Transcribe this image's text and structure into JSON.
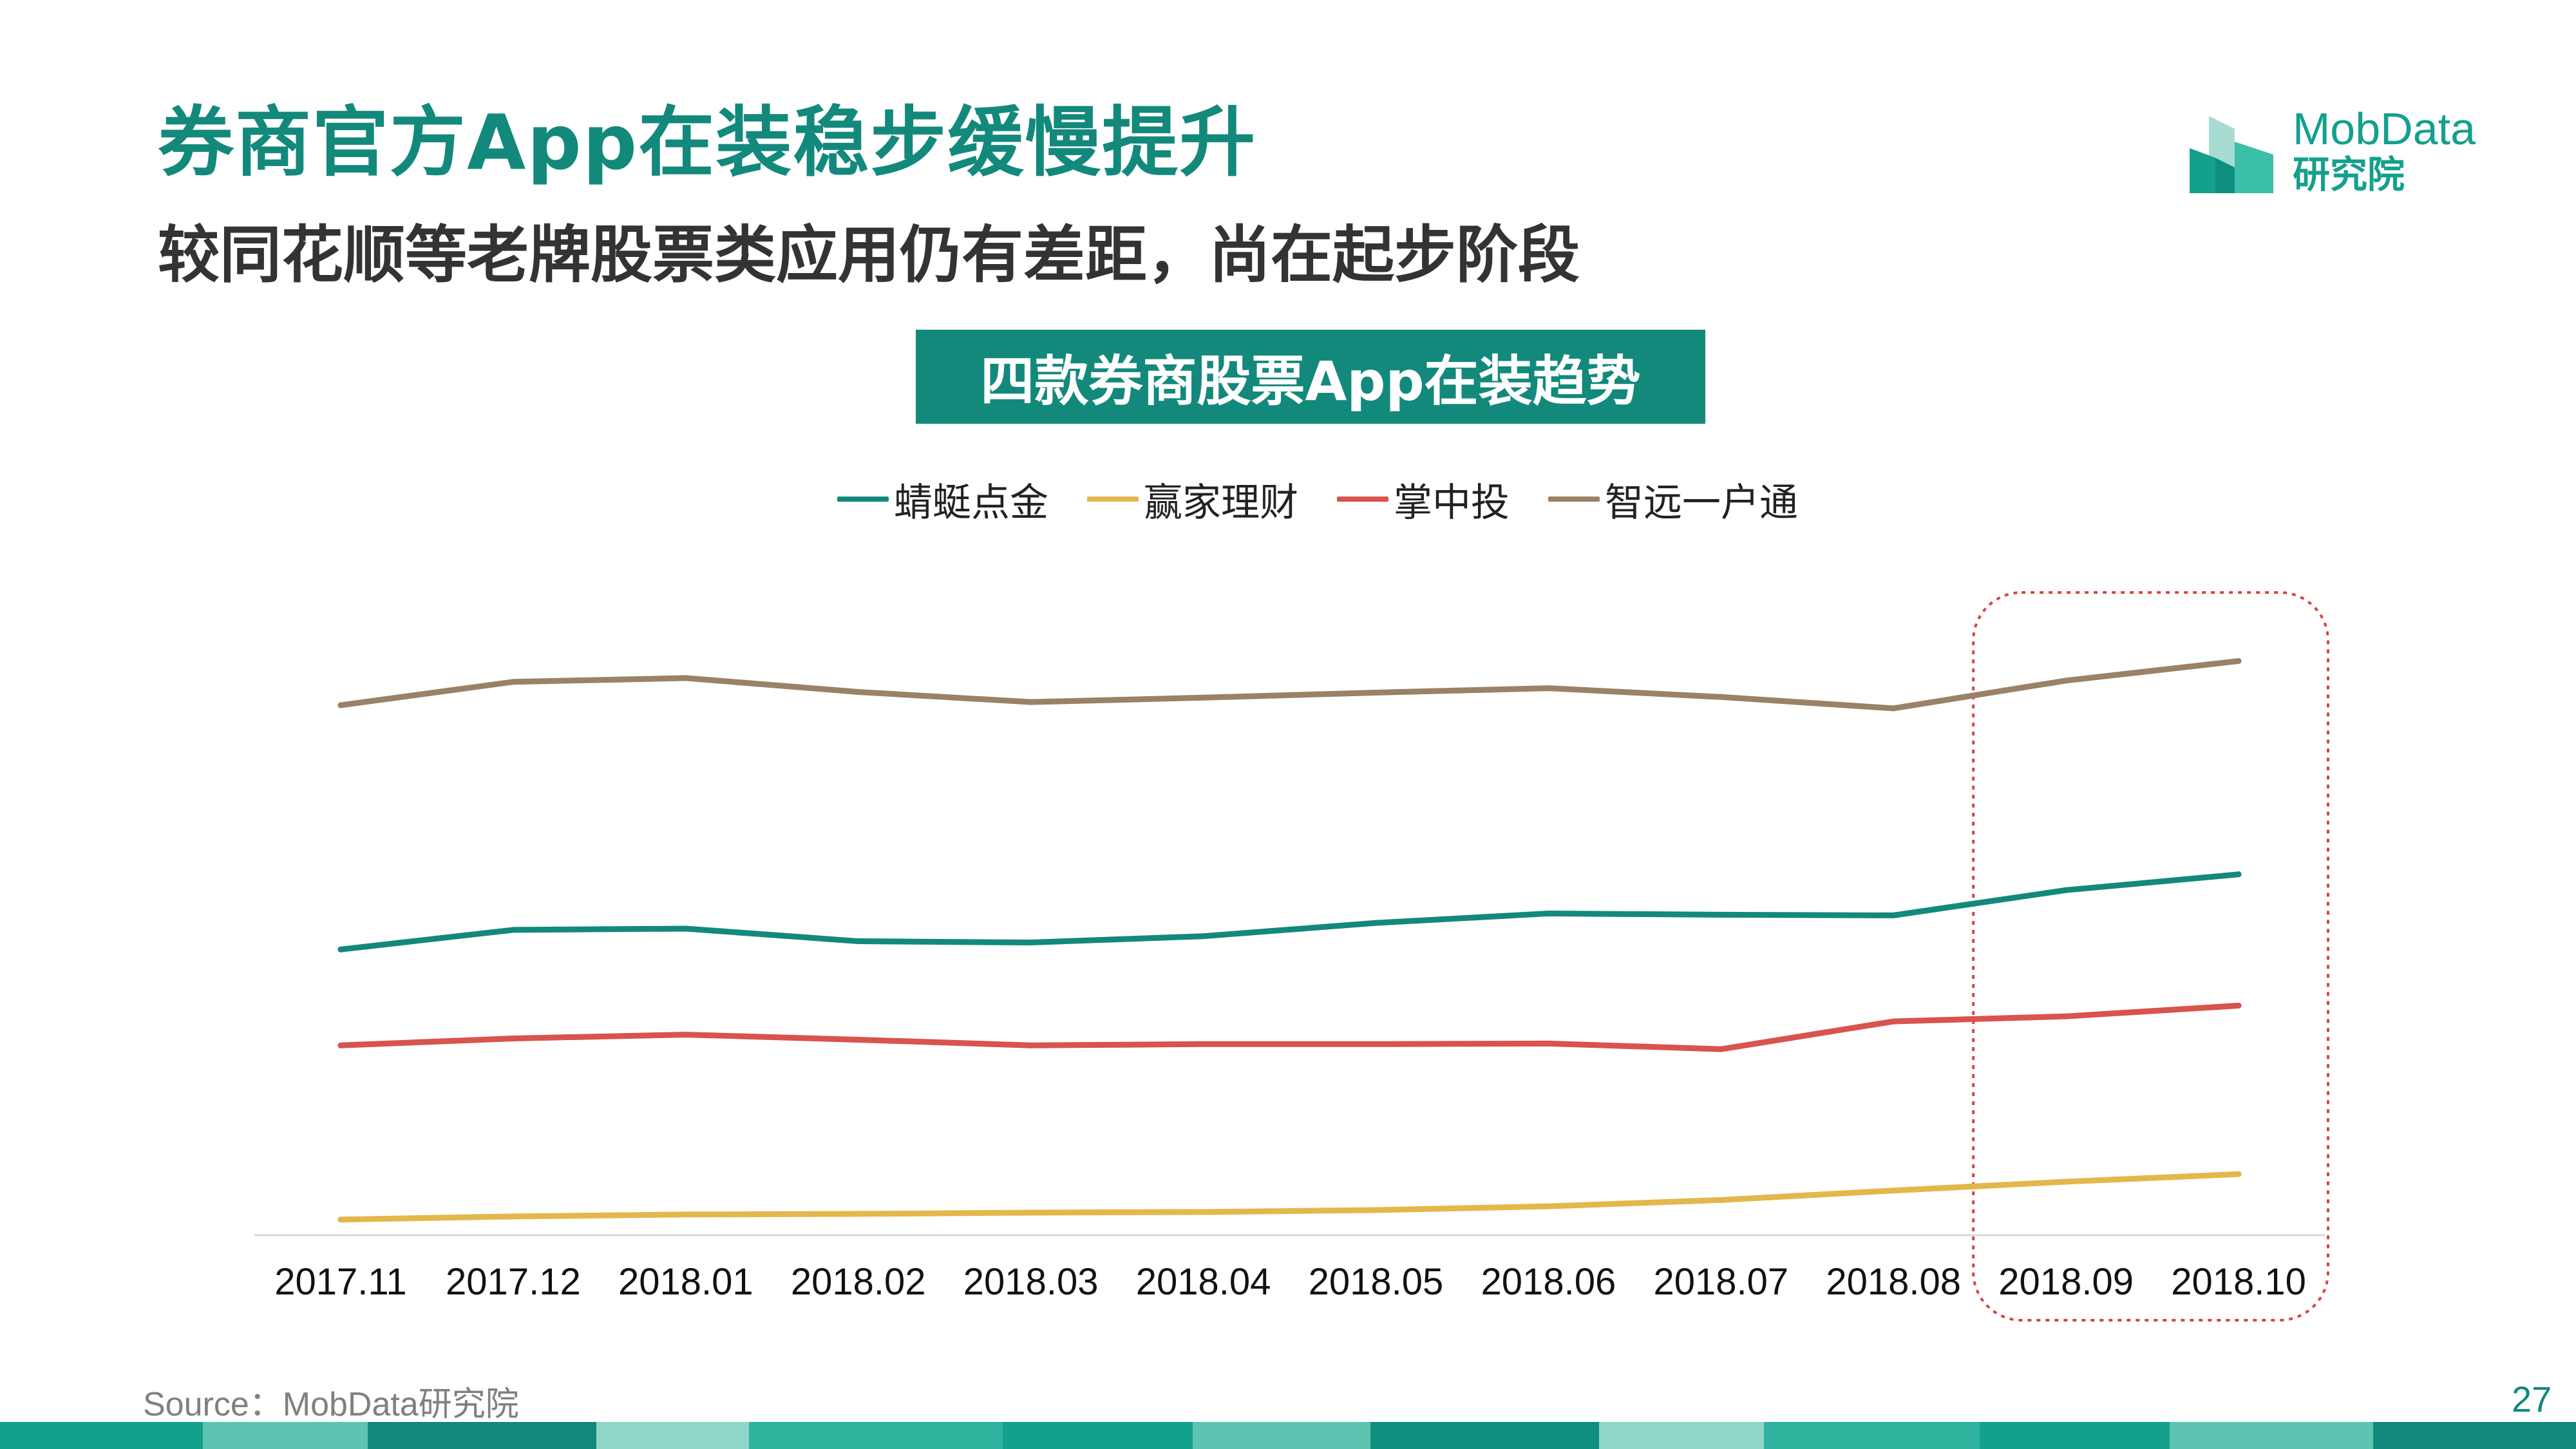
{
  "slide": {
    "title": "券商官方App在装稳步缓慢提升",
    "subtitle": "较同花顺等老牌股票类应用仍有差距，尚在起步阶段",
    "page_number": "27",
    "source": "Source：MobData研究院"
  },
  "logo": {
    "line1": "MobData",
    "line2": "研究院",
    "color": "#13a08d"
  },
  "colors": {
    "accent": "#13897c",
    "highlight_box": "#d64541"
  },
  "chart_data": {
    "type": "line",
    "title": "四款券商股票App在装趋势",
    "categories": [
      "2017.11",
      "2017.12",
      "2018.01",
      "2018.02",
      "2018.03",
      "2018.04",
      "2018.05",
      "2018.06",
      "2018.07",
      "2018.08",
      "2018.09",
      "2018.10"
    ],
    "ylim": [
      0,
      100
    ],
    "y_axis_labels_shown": false,
    "grid": false,
    "legend_position": "top-center",
    "highlight_categories": [
      "2018.09",
      "2018.10"
    ],
    "series": [
      {
        "name": "蜻蜓点金",
        "color": "#13897c",
        "values": [
          46.5,
          49.6,
          49.8,
          47.8,
          47.6,
          48.6,
          50.7,
          52.2,
          52.0,
          51.9,
          55.9,
          58.4
        ]
      },
      {
        "name": "赢家理财",
        "color": "#e3b84b",
        "values": [
          3.7,
          4.2,
          4.5,
          4.6,
          4.8,
          4.9,
          5.2,
          5.8,
          6.8,
          8.3,
          9.7,
          10.9
        ]
      },
      {
        "name": "掌中投",
        "color": "#d9534f",
        "values": [
          31.3,
          32.4,
          33.0,
          32.2,
          31.3,
          31.5,
          31.5,
          31.6,
          30.7,
          35.1,
          35.9,
          37.6
        ]
      },
      {
        "name": "智远一户通",
        "color": "#9b8168",
        "values": [
          85.2,
          88.9,
          89.5,
          87.3,
          85.7,
          86.4,
          87.2,
          87.9,
          86.5,
          84.7,
          89.1,
          92.2
        ]
      }
    ]
  }
}
